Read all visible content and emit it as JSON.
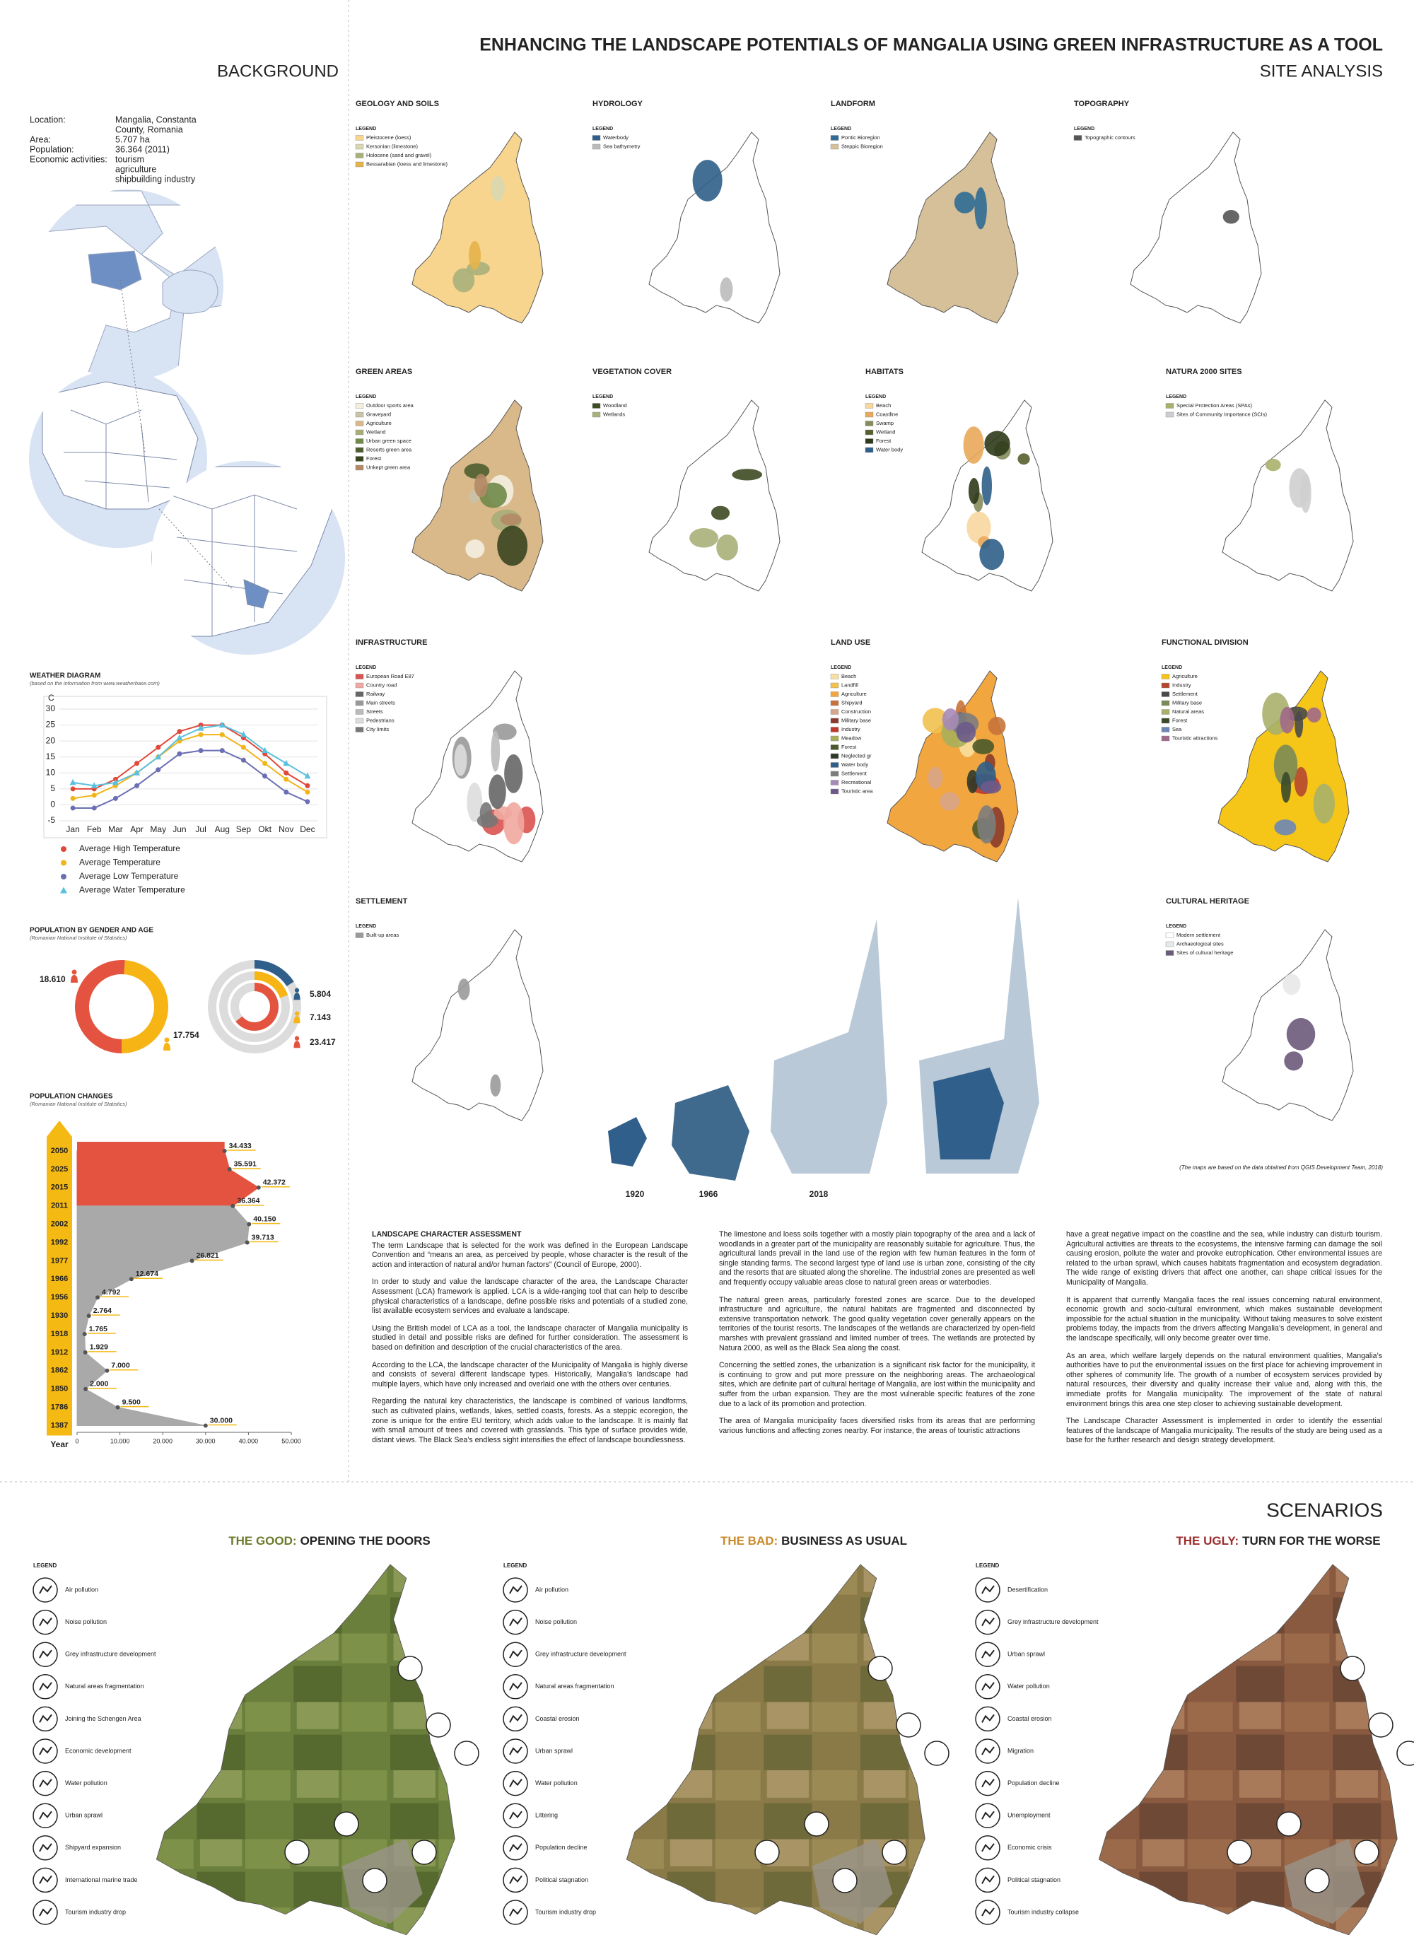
{
  "header": {
    "title": "ENHANCING THE LANDSCAPE POTENTIALS OF MANGALIA USING GREEN INFRASTRUCTURE AS A TOOL",
    "subtitle": "SITE ANALYSIS",
    "section": "BACKGROUND"
  },
  "info": [
    {
      "label": "Location:",
      "lines": [
        "Mangalia, Constanta",
        "County, Romania"
      ]
    },
    {
      "label": "Area:",
      "lines": [
        "5.707 ha"
      ]
    },
    {
      "label": "Population:",
      "lines": [
        "36.364 (2011)"
      ]
    },
    {
      "label": "Economic activities:",
      "lines": [
        "tourism",
        "agriculture",
        "shipbuilding industry"
      ]
    }
  ],
  "chart_data": [
    {
      "type": "line",
      "title": "WEATHER DIAGRAM",
      "subtitle": "(based on the information from www.weatherbase.com)",
      "y_label": "C",
      "categories": [
        "Jan",
        "Feb",
        "Mar",
        "Apr",
        "May",
        "Jun",
        "Jul",
        "Aug",
        "Sep",
        "Okt",
        "Nov",
        "Dec"
      ],
      "ylim": [
        -5,
        30
      ],
      "yticks": [
        -5,
        0,
        5,
        10,
        15,
        20,
        25,
        30
      ],
      "grid": true,
      "series": [
        {
          "name": "Average High Temperature",
          "color": "#e0483a",
          "marker": "circle",
          "values": [
            5,
            5,
            8,
            13,
            18,
            23,
            25,
            25,
            21,
            16,
            10,
            6
          ]
        },
        {
          "name": "Average Temperature",
          "color": "#f2b418",
          "marker": "circle",
          "values": [
            2,
            3,
            6,
            10,
            15,
            20,
            22,
            22,
            18,
            13,
            8,
            4
          ]
        },
        {
          "name": "Average Low Temperature",
          "color": "#6a6fb4",
          "marker": "circle",
          "values": [
            -1,
            -1,
            2,
            6,
            11,
            16,
            17,
            17,
            14,
            9,
            4,
            1
          ]
        },
        {
          "name": "Average Water Temperature",
          "color": "#5bc0de",
          "marker": "triangle",
          "values": [
            7,
            6,
            7,
            10,
            15,
            21,
            24,
            25,
            22,
            17,
            13,
            9
          ]
        }
      ]
    },
    {
      "type": "donut",
      "title": "POPULATION BY GENDER AND AGE",
      "subtitle": "(Romanian National Institute of Statistics)",
      "values": [
        18610,
        17754
      ],
      "value_labels": [
        "18.610",
        "17.754"
      ],
      "colors": [
        "#e4533f",
        "#f7b515"
      ]
    },
    {
      "type": "rings",
      "values": [
        5804,
        7143,
        23417
      ],
      "value_labels": [
        "5.804",
        "7.143",
        "23.417"
      ],
      "colors": [
        "#2f5f8a",
        "#f7b515",
        "#e4533f"
      ]
    },
    {
      "type": "area",
      "title": "POPULATION CHANGES",
      "subtitle": "(Romanian National Institute of Statistics)",
      "y_label": "Year",
      "categories": [
        "2050",
        "2025",
        "2015",
        "2011",
        "2002",
        "1992",
        "1977",
        "1966",
        "1956",
        "1930",
        "1918",
        "1912",
        "1862",
        "1850",
        "1786",
        "1387"
      ],
      "values": [
        34433,
        35591,
        42372,
        36364,
        40150,
        39713,
        26821,
        12674,
        4792,
        2764,
        1765,
        1929,
        7000,
        2000,
        9500,
        30000
      ],
      "value_labels": [
        "34.433",
        "35.591",
        "42.372",
        "36.364",
        "40.150",
        "39.713",
        "26.821",
        "12.674",
        "4.792",
        "2.764",
        "1.765",
        "1.929",
        "7.000",
        "2.000",
        "9.500",
        "30.000"
      ],
      "colors": [
        "#e4533f",
        "#e4533f",
        "#e4533f",
        "#e4533f",
        "#a9a9a9",
        "#a9a9a9",
        "#a9a9a9",
        "#a9a9a9",
        "#a9a9a9",
        "#a9a9a9",
        "#a9a9a9",
        "#a9a9a9",
        "#a9a9a9",
        "#a9a9a9",
        "#a9a9a9",
        "#a9a9a9"
      ],
      "xlim": [
        0,
        50000
      ],
      "xticks": [
        0,
        {
          "value": 10000,
          "label": "10.000"
        },
        {
          "value": 20000,
          "label": "20.000"
        },
        {
          "value": 30000,
          "label": "30.000"
        },
        {
          "value": 40000,
          "label": "40.000"
        },
        {
          "value": 50000,
          "label": "50.000"
        }
      ]
    }
  ],
  "maps": {
    "legend_heading": "LEGEND",
    "source_note": "(The maps are based on the data obtained from QGIS Development Team, 2018)",
    "items": [
      {
        "title": "GEOLOGY AND SOILS",
        "legend": [
          {
            "label": "Pleistocene (loess)",
            "color": "#f7d58f"
          },
          {
            "label": "Kersonian (limestone)",
            "color": "#d9d7b0"
          },
          {
            "label": "Holocene (sand and gravel)",
            "color": "#a8b07a"
          },
          {
            "label": "Bessarabian (loess and limestone)",
            "color": "#e6b34a"
          }
        ]
      },
      {
        "title": "HYDROLOGY",
        "legend": [
          {
            "label": "Waterbody",
            "color": "#2f5f8a"
          },
          {
            "label": "Sea bathymetry",
            "color": "#bbbbbb"
          }
        ]
      },
      {
        "title": "LANDFORM",
        "legend": [
          {
            "label": "Pontic Bioregion",
            "color": "#2f6b95"
          },
          {
            "label": "Steppic Bioregion",
            "color": "#d6c09a"
          }
        ]
      },
      {
        "title": "TOPOGRAPHY",
        "legend": [
          {
            "label": "Topographic contours",
            "color": "#555555"
          }
        ]
      },
      {
        "title": "GREEN AREAS",
        "legend": [
          {
            "label": "Outdoor sports area",
            "color": "#f3efe0"
          },
          {
            "label": "Graveyard",
            "color": "#c9c3a9"
          },
          {
            "label": "Agriculture",
            "color": "#d9b98a"
          },
          {
            "label": "Wetland",
            "color": "#a7ad78"
          },
          {
            "label": "Urban green space",
            "color": "#6f8a4a"
          },
          {
            "label": "Resorts green area",
            "color": "#4e5e2f"
          },
          {
            "label": "Forest",
            "color": "#39451f"
          },
          {
            "label": "Unkept green area",
            "color": "#b38a66"
          }
        ]
      },
      {
        "title": "VEGETATION COVER",
        "legend": [
          {
            "label": "Woodland",
            "color": "#3d4a22"
          },
          {
            "label": "Wetlands",
            "color": "#a9b079"
          }
        ]
      },
      {
        "title": "HABITATS",
        "legend": [
          {
            "label": "Beach",
            "color": "#f7d7a0"
          },
          {
            "label": "Coastline",
            "color": "#e9a85a"
          },
          {
            "label": "Swamp",
            "color": "#858c5b"
          },
          {
            "label": "Wetland",
            "color": "#57612f"
          },
          {
            "label": "Forest",
            "color": "#2f3a1a"
          },
          {
            "label": "Water body",
            "color": "#2f5f8a"
          }
        ]
      },
      {
        "title": "NATURA 2000 SITES",
        "legend": [
          {
            "label": "Special Protection Areas (SPAs)",
            "color": "#a9b06a"
          },
          {
            "label": "Sites of Community Importance (SCIs)",
            "color": "#cfcfcf"
          }
        ]
      },
      {
        "title": "INFRASTRUCTURE",
        "legend": [
          {
            "label": "European Road E87",
            "color": "#d9534f"
          },
          {
            "label": "Country road",
            "color": "#f0a8a0"
          },
          {
            "label": "Railway",
            "color": "#666666"
          },
          {
            "label": "Main streets",
            "color": "#999999"
          },
          {
            "label": "Streets",
            "color": "#bbbbbb"
          },
          {
            "label": "Pedestrians",
            "color": "#dddddd"
          },
          {
            "label": "City limits",
            "color": "#777777"
          }
        ]
      },
      {
        "title": "LAND USE",
        "legend": [
          {
            "label": "Beach",
            "color": "#f9dfa0"
          },
          {
            "label": "Landfill",
            "color": "#f2c14e"
          },
          {
            "label": "Agriculture",
            "color": "#f2a640"
          },
          {
            "label": "Shipyard",
            "color": "#c8733a"
          },
          {
            "label": "Construction",
            "color": "#d8a58a"
          },
          {
            "label": "Military base",
            "color": "#8a3b2b"
          },
          {
            "label": "Industry",
            "color": "#c0392b"
          },
          {
            "label": "Meadow",
            "color": "#a8b05a"
          },
          {
            "label": "Forest",
            "color": "#4a5a2a"
          },
          {
            "label": "Neglected gr",
            "color": "#2f3a2a"
          },
          {
            "label": "Water body",
            "color": "#2f5f8a"
          },
          {
            "label": "Settlement",
            "color": "#7d7d7d"
          },
          {
            "label": "Recreational",
            "color": "#a78ab8"
          },
          {
            "label": "Touristic area",
            "color": "#6d5a8a"
          }
        ]
      },
      {
        "title": "FUNCTIONAL DIVISION",
        "legend": [
          {
            "label": "Agriculture",
            "color": "#f5c518"
          },
          {
            "label": "Industry",
            "color": "#b5472f"
          },
          {
            "label": "Settlement",
            "color": "#4a4a4a"
          },
          {
            "label": "Military base",
            "color": "#7c8a57"
          },
          {
            "label": "Natural areas",
            "color": "#a9b06a"
          },
          {
            "label": "Forest",
            "color": "#3a4a2a"
          },
          {
            "label": "Sea",
            "color": "#6d86b8"
          },
          {
            "label": "Touristic attractions",
            "color": "#a1698a"
          }
        ]
      },
      {
        "title": "SETTLEMENT",
        "legend": [
          {
            "label": "Built-up areas",
            "color": "#9a9a9a"
          }
        ],
        "years": [
          "1920",
          "1966",
          "2018"
        ]
      },
      {
        "title": "CULTURAL HERITAGE",
        "legend": [
          {
            "label": "Modern settlement",
            "color": "#ffffff"
          },
          {
            "label": "Archaeological sites",
            "color": "#e8e8e8"
          },
          {
            "label": "Sites of cultural heritage",
            "color": "#6b5a7a"
          }
        ]
      }
    ]
  },
  "assessment": {
    "title": "LANDSCAPE CHARACTER ASSESSMENT",
    "paragraphs": [
      "The term Landscape that is selected for the work was defined in the European Landscape Convention and “means an area, as perceived by people, whose character is the result of the action and interaction of natural and/or human factors” (Council of Europe, 2000).",
      "In order to study and value the landscape character of the area, the Landscape Character Assessment (LCA) framework is applied. LCA is a wide-ranging tool that can help to describe physical characteristics of a landscape, define possible risks and potentials of a studied zone, list available ecosystem services and evaluate a landscape.",
      "Using the British model of LCA as a tool, the landscape character of Mangalia municipality is studied in detail and possible risks are defined for further consideration. The assessment is based on definition and description of the crucial characteristics of the area.",
      "According to the LCA, the landscape character of the Municipality of Mangalia is highly diverse and consists of several different landscape types. Historically, Mangalia’s landscape had multiple layers, which have only increased and overlaid one with the others over centuries.",
      "Regarding the natural key characteristics, the landscape is combined of various landforms, such as cultivated plains, wetlands, lakes, settled coasts, forests. As a steppic ecoregion, the zone is unique for the entire EU territory, which adds value to the landscape. It is mainly flat with small amount of trees and covered with grasslands. This type of surface provides wide, distant views. The Black Sea’s endless sight intensifies the effect of landscape boundlessness.",
      "The limestone and loess soils together with a mostly plain topography of the area and a lack of woodlands in a greater part of the municipality are reasonably suitable for agriculture. Thus, the agricultural lands prevail in the land use of the region with few human features in the form of single standing farms. The second largest type of land use is urban zone, consisting of the city and the resorts that are situated along the shoreline. The industrial zones are presented as well and frequently occupy valuable areas close to natural green areas or waterbodies.",
      "The natural green areas, particularly forested zones are scarce. Due to the developed infrastructure and agriculture, the natural habitats are fragmented and disconnected by extensive transportation network. The good quality vegetation cover generally appears on the territories of the tourist resorts. The landscapes of the wetlands are characterized by open-field marshes with prevalent grassland and limited number of trees. The wetlands are protected by Natura 2000, as well as the Black Sea along the coast.",
      "Concerning the settled zones, the urbanization is a significant risk factor for the municipality, it is continuing to grow and put more pressure on the neighboring areas. The archaeological sites, which are definite part of cultural heritage of Mangalia, are lost within the municipality and suffer from the urban expansion. They are the most vulnerable specific features of the zone due to a lack of its promotion and protection.",
      "The area of Mangalia municipality faces diversified risks from its areas that are performing various functions and affecting zones nearby. For instance, the areas of touristic attractions",
      "have a great negative impact on the coastline and the sea, while industry can disturb tourism. Agricultural activities are threats to the ecosystems, the intensive farming can damage the soil causing erosion, pollute the water and provoke eutrophication. Other environmental issues are related to the urban sprawl, which causes habitats fragmentation and ecosystem degradation. The wide range of existing drivers that affect one another, can shape critical issues for the Municipality of Mangalia.",
      "It is apparent that currently Mangalia faces the real issues concerning natural environment, economic growth and socio-cultural environment, which makes sustainable development impossible for the actual situation in the municipality. Without taking measures to solve existent problems today, the impacts from the drivers affecting Mangalia’s development, in general and the landscape specifically, will only become greater over time.",
      "As an area, which welfare largely depends on the natural environment qualities, Mangalia’s authorities have to put the environmental issues on the first place for achieving improvement in other spheres of community life. The growth of a number of ecosystem services provided by natural resources, their diversity and quality increase their value and, along with this, the immediate profits for Mangalia municipality. The improvement of the state of natural environment brings this area one step closer to achieving sustainable development.",
      "The Landscape Character Assessment is implemented in order to identify the essential features of the landscape of Mangalia municipality. The results of the study are being used as a base for the further research and design strategy development."
    ]
  },
  "scenarios": {
    "title": "SCENARIOS",
    "legend_heading": "LEGEND",
    "items": [
      {
        "label": "THE GOOD:",
        "name": "OPENING THE DOORS",
        "color": "#6b7a2a",
        "legend": [
          "Air pollution",
          "Noise pollution",
          "Grey infrastructure development",
          "Natural areas fragmentation",
          "Joining the Schengen Area",
          "Economic development",
          "Water pollution",
          "Urban sprawl",
          "Shipyard expansion",
          "International marine trade",
          "Tourism industry drop"
        ]
      },
      {
        "label": "THE BAD:",
        "name": "BUSINESS AS USUAL",
        "color": "#c98a2b",
        "legend": [
          "Air pollution",
          "Noise pollution",
          "Grey infrastructure development",
          "Natural areas fragmentation",
          "Coastal erosion",
          "Urban sprawl",
          "Water pollution",
          "Littering",
          "Population decline",
          "Political stagnation",
          "Tourism industry drop"
        ]
      },
      {
        "label": "THE UGLY:",
        "name": "TURN FOR THE WORSE",
        "color": "#9b2d2d",
        "legend": [
          "Desertification",
          "Grey infrastructure development",
          "Urban sprawl",
          "Water pollution",
          "Coastal erosion",
          "Migration",
          "Population decline",
          "Unemployment",
          "Economic crisis",
          "Political stagnation",
          "Tourism industry collapse"
        ]
      }
    ]
  }
}
